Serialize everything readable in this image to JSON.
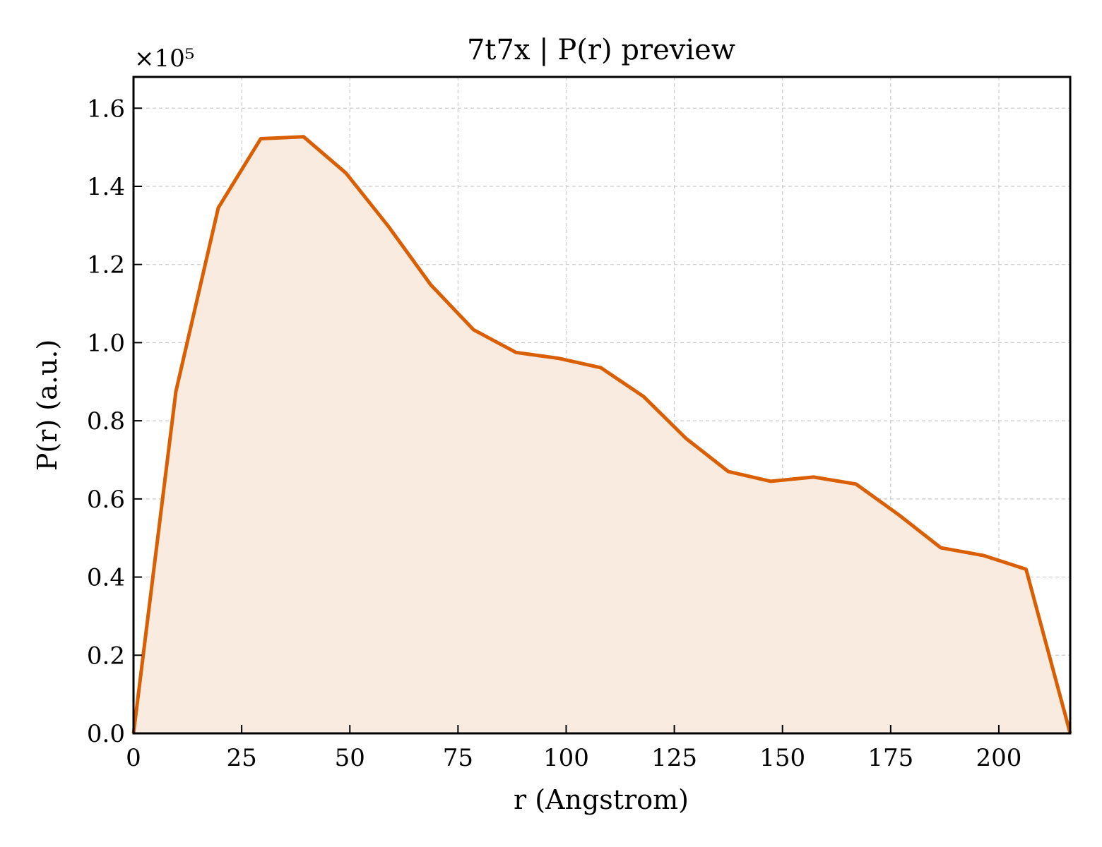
{
  "chart_data": {
    "type": "area",
    "title": "7t7x | P(r) preview",
    "xlabel": "r (Angstrom)",
    "ylabel": "P(r) (a.u.)",
    "y_scale_label": "×10⁵",
    "xlim": [
      0,
      216.5
    ],
    "ylim": [
      0,
      1.68
    ],
    "x_ticks": [
      0,
      25,
      50,
      75,
      100,
      125,
      150,
      175,
      200
    ],
    "y_ticks": [
      "0.0",
      "0.2",
      "0.4",
      "0.6",
      "0.8",
      "1.0",
      "1.2",
      "1.4",
      "1.6"
    ],
    "grid": true,
    "line_color": "#d95f02",
    "fill_color": "#f9ebe0",
    "series": [
      {
        "x": [
          0,
          9.8,
          19.6,
          29.4,
          39.3,
          49.1,
          58.9,
          68.7,
          78.6,
          88.4,
          98.2,
          108.0,
          117.9,
          127.7,
          137.5,
          147.3,
          157.2,
          167.0,
          176.8,
          186.6,
          196.5,
          206.3,
          216.5
        ],
        "y": [
          0.0,
          0.875,
          1.345,
          1.522,
          1.527,
          1.434,
          1.298,
          1.148,
          1.033,
          0.975,
          0.96,
          0.936,
          0.862,
          0.755,
          0.67,
          0.645,
          0.656,
          0.638,
          0.56,
          0.475,
          0.455,
          0.42,
          0.0
        ]
      }
    ]
  }
}
